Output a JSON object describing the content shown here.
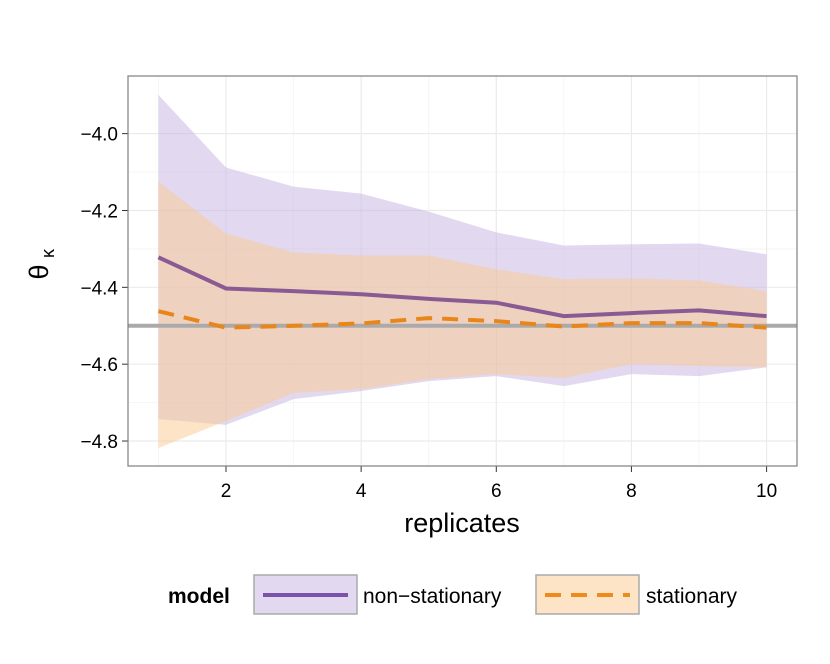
{
  "chart_data": {
    "type": "line",
    "xlabel": "replicates",
    "ylabel": "θ",
    "ylabel_sub": "κ",
    "x": [
      1,
      2,
      3,
      4,
      5,
      6,
      7,
      8,
      9,
      10
    ],
    "xlim": [
      0.55,
      10.45
    ],
    "ylim": [
      -4.865,
      -3.85
    ],
    "xticks": [
      2,
      4,
      6,
      8,
      10
    ],
    "yticks": [
      {
        "value": -4.0,
        "label": "−4.0"
      },
      {
        "value": -4.2,
        "label": "−4.2"
      },
      {
        "value": -4.4,
        "label": "−4.4"
      },
      {
        "value": -4.6,
        "label": "−4.6"
      },
      {
        "value": -4.8,
        "label": "−4.8"
      }
    ],
    "grid": true,
    "hline": -4.5,
    "hline_color": "#aaaaaa",
    "legend_title": "model",
    "legend_position": "bottom",
    "series": [
      {
        "name": "non−stationary",
        "color": "#8a5a92",
        "key_color": "#7b52ab",
        "fill": "#c6b3e3",
        "dash": "solid",
        "values": [
          -4.322,
          -4.403,
          -4.41,
          -4.418,
          -4.43,
          -4.44,
          -4.475,
          -4.467,
          -4.46,
          -4.475
        ],
        "upper": [
          -3.899,
          -4.088,
          -4.138,
          -4.156,
          -4.203,
          -4.257,
          -4.291,
          -4.288,
          -4.286,
          -4.314
        ],
        "lower": [
          -4.743,
          -4.758,
          -4.691,
          -4.67,
          -4.644,
          -4.631,
          -4.657,
          -4.626,
          -4.631,
          -4.608
        ]
      },
      {
        "name": "stationary",
        "color": "#e8861a",
        "key_color": "#f08a1a",
        "fill": "#fcc98f",
        "dash": "dashed",
        "values": [
          -4.462,
          -4.505,
          -4.5,
          -4.494,
          -4.48,
          -4.488,
          -4.502,
          -4.493,
          -4.493,
          -4.505
        ],
        "upper": [
          -4.125,
          -4.26,
          -4.309,
          -4.317,
          -4.317,
          -4.353,
          -4.379,
          -4.377,
          -4.382,
          -4.41
        ],
        "lower": [
          -4.818,
          -4.748,
          -4.675,
          -4.665,
          -4.639,
          -4.626,
          -4.636,
          -4.6,
          -4.605,
          -4.608
        ]
      }
    ]
  }
}
